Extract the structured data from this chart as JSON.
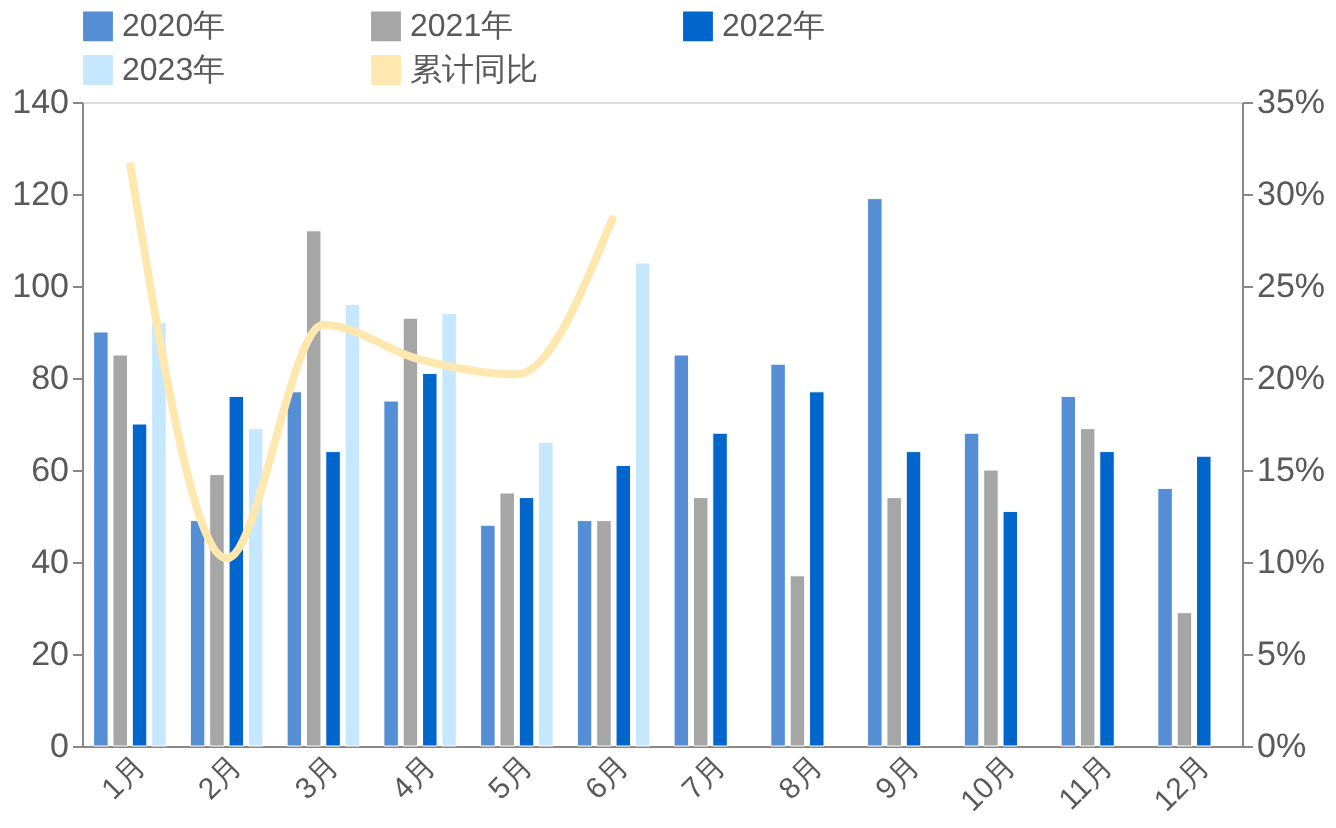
{
  "chart_data": {
    "type": "bar",
    "categories": [
      "1月",
      "2月",
      "3月",
      "4月",
      "5月",
      "6月",
      "7月",
      "8月",
      "9月",
      "10月",
      "11月",
      "12月"
    ],
    "series": [
      {
        "name": "2020年",
        "color": "#558ed5",
        "values": [
          90,
          49,
          77,
          75,
          48,
          49,
          85,
          83,
          119,
          68,
          76,
          56
        ]
      },
      {
        "name": "2021年",
        "color": "#a6a6a6",
        "values": [
          85,
          59,
          112,
          93,
          55,
          49,
          54,
          37,
          54,
          60,
          69,
          29
        ]
      },
      {
        "name": "2022年",
        "color": "#0066cc",
        "values": [
          70,
          76,
          64,
          81,
          54,
          61,
          68,
          77,
          64,
          51,
          64,
          63
        ]
      },
      {
        "name": "2023年",
        "color": "#c5e8ff",
        "values": [
          92,
          69,
          96,
          94,
          66,
          105,
          null,
          null,
          null,
          null,
          null,
          null
        ]
      },
      {
        "name": "累计同比",
        "color": "#ffe8b0",
        "type": "line",
        "axis": "y2",
        "values": [
          31.7,
          10.2,
          22.9,
          21,
          20.2,
          28.8,
          null,
          null,
          null,
          null,
          null,
          null
        ]
      }
    ],
    "ylim": [
      0,
      140
    ],
    "yticks": [
      0,
      20,
      40,
      60,
      80,
      100,
      120,
      140
    ],
    "y2lim": [
      0,
      35
    ],
    "y2ticks": [
      {
        "value": 0,
        "label": "0%"
      },
      {
        "value": 5,
        "label": "5%"
      },
      {
        "value": 10,
        "label": "10%"
      },
      {
        "value": 15,
        "label": "15%"
      },
      {
        "value": 20,
        "label": "20%"
      },
      {
        "value": 25,
        "label": "25%"
      },
      {
        "value": 30,
        "label": "30%"
      },
      {
        "value": 35,
        "label": "35%"
      }
    ],
    "legend": "top",
    "grid": false
  }
}
